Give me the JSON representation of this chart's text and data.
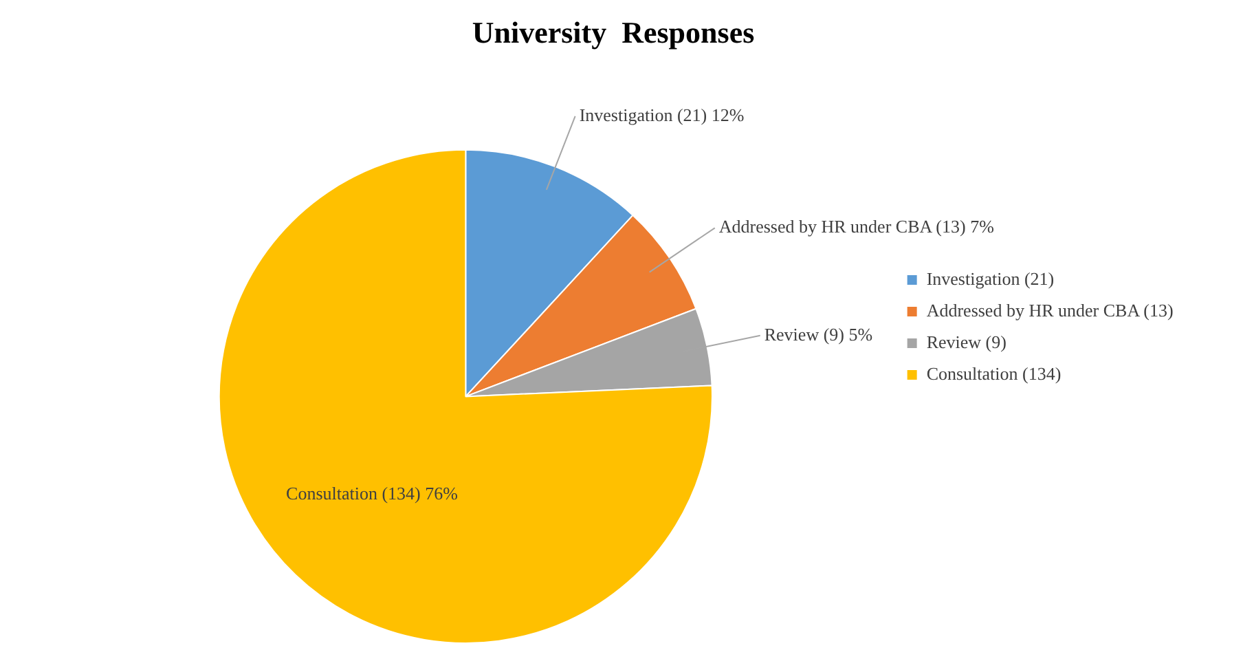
{
  "chart_data": {
    "type": "pie",
    "title": "University  Responses",
    "categories": [
      "Investigation (21)",
      "Addressed by HR under CBA (13)",
      "Review (9)",
      "Consultation (134)"
    ],
    "values": [
      21,
      13,
      9,
      134
    ],
    "colors": [
      "#5b9bd5",
      "#ed7d31",
      "#a5a5a5",
      "#ffc000"
    ],
    "value_labels": [
      "Investigation (21) 12%",
      "Addressed by HR under CBA (13) 7%",
      "Review (9) 5%",
      "Consultation (134) 76%"
    ],
    "legend": "right"
  }
}
